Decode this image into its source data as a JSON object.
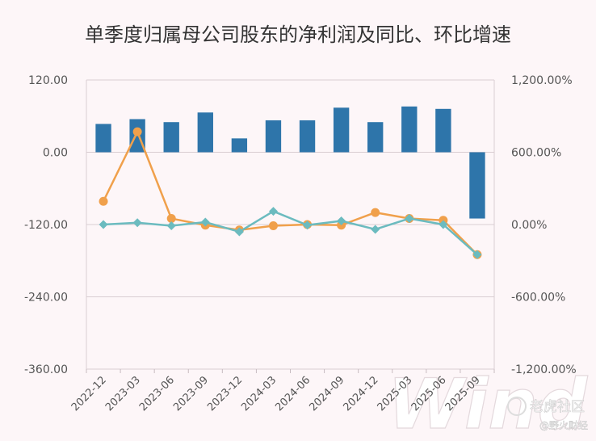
{
  "chart_data": {
    "type": "bar",
    "title": "单季度归属母公司股东的净利润及同比、环比增速",
    "categories": [
      "2022-12",
      "2023-03",
      "2023-06",
      "2023-09",
      "2023-12",
      "2024-03",
      "2024-06",
      "2024-09",
      "2024-12",
      "2025-03",
      "2025-06",
      "2025-09"
    ],
    "left_axis": {
      "ylim": [
        -360,
        120
      ],
      "ticks": [
        "120.00",
        "0.00",
        "-120.00",
        "-240.00",
        "-360.00"
      ]
    },
    "right_axis": {
      "ylim": [
        -1200,
        1200
      ],
      "ticks": [
        "1,200.00%",
        "600.00%",
        "0.00%",
        "-600.00%",
        "-1,200.00%"
      ]
    },
    "series": [
      {
        "type": "bar",
        "axis": "left",
        "color": "#2e75aa",
        "values": [
          47,
          55,
          50,
          66,
          23,
          53,
          53,
          74,
          50,
          76,
          72,
          -110
        ]
      },
      {
        "type": "line",
        "axis": "right",
        "marker": "circle",
        "color": "#f0a04b",
        "values": [
          193,
          770,
          50,
          -5,
          -45,
          -10,
          0,
          -5,
          100,
          50,
          35,
          -250
        ]
      },
      {
        "type": "line",
        "axis": "right",
        "marker": "diamond",
        "color": "#6bbbbf",
        "values": [
          0,
          15,
          -10,
          20,
          -60,
          110,
          -5,
          30,
          -40,
          50,
          0,
          -250
        ]
      }
    ],
    "grid": "horizontal",
    "legend": "none"
  },
  "watermark": {
    "brand": "Wind",
    "logo_text": "老虎社区",
    "sub_text": "@野火财经"
  }
}
